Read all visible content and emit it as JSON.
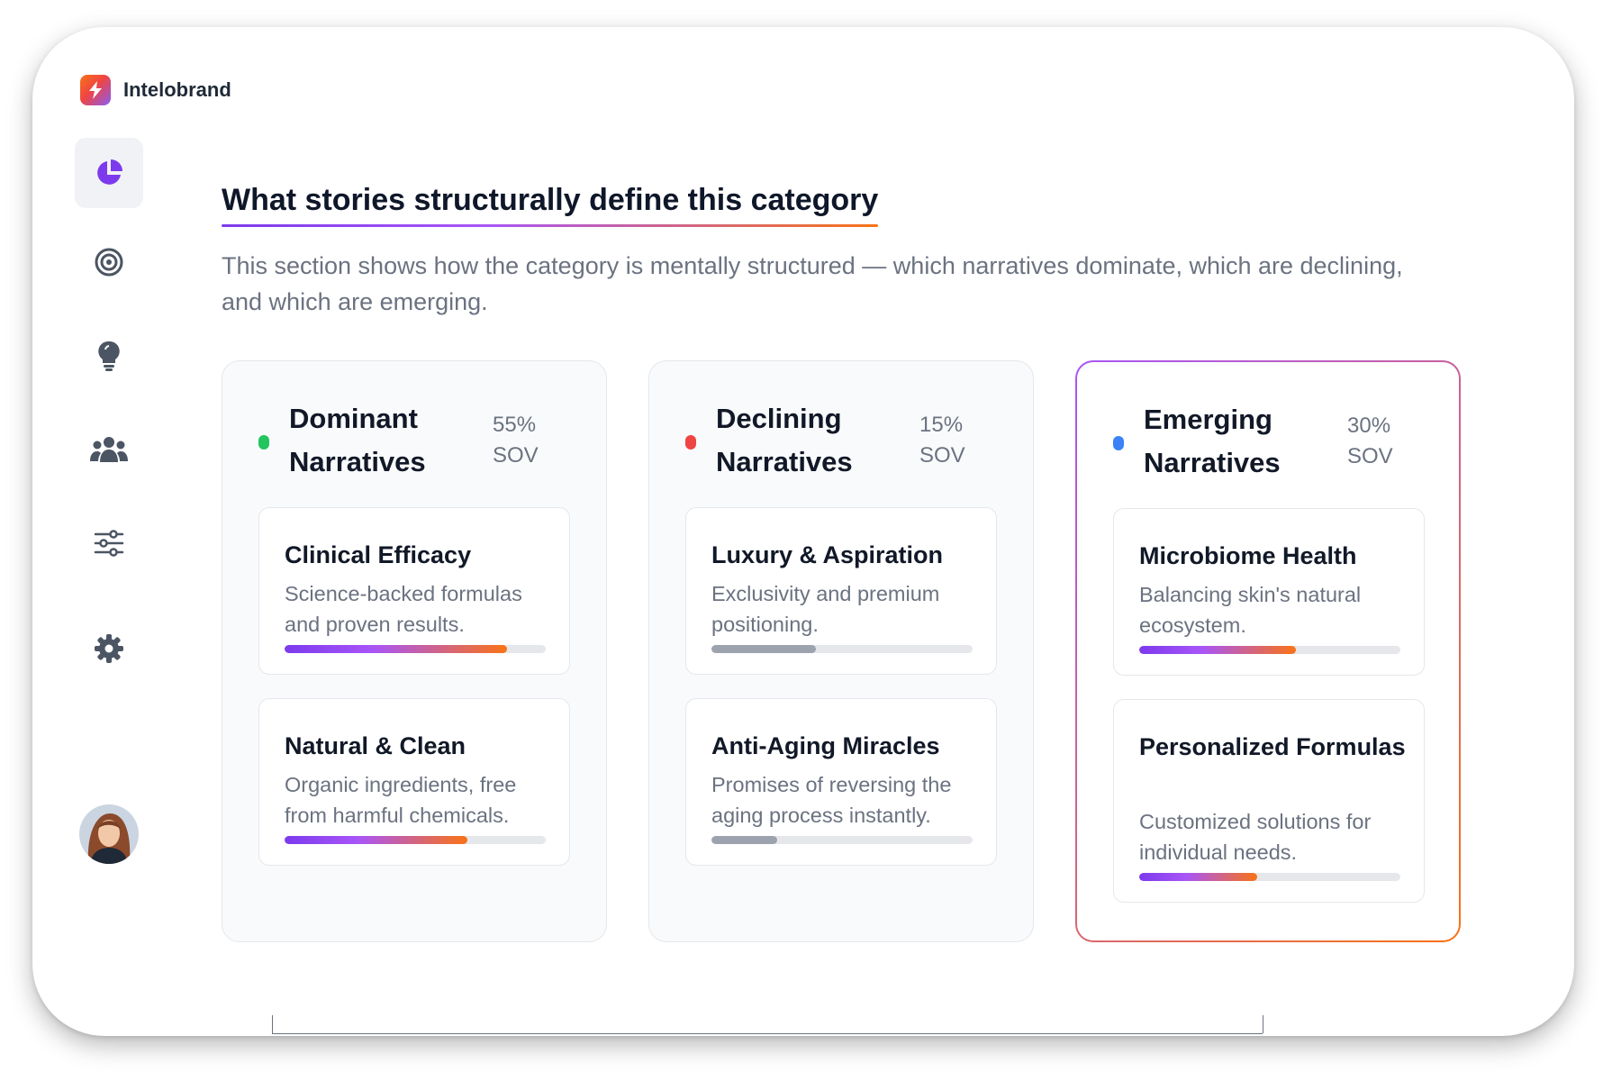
{
  "brand": {
    "name": "Intelobrand",
    "logo_icon": "lightning-icon"
  },
  "sidebar": {
    "items": [
      {
        "icon": "pie-chart-icon",
        "active": true
      },
      {
        "icon": "target-icon",
        "active": false
      },
      {
        "icon": "lightbulb-icon",
        "active": false
      },
      {
        "icon": "users-icon",
        "active": false
      },
      {
        "icon": "sliders-icon",
        "active": false
      },
      {
        "icon": "gear-icon",
        "active": false
      }
    ],
    "avatar": "user-avatar"
  },
  "header": {
    "title": "What stories structurally define this category",
    "description": "This section shows how the category is mentally structured — which narratives dominate, which are declining, and which are emerging."
  },
  "columns": [
    {
      "title": "Dominant Narratives",
      "sov_value": "55%",
      "sov_label": "SOV",
      "dot_color": "#22c55e",
      "cards": [
        {
          "title": "Clinical Efficacy",
          "description": "Science-backed formulas and proven results.",
          "strength": 0.85
        },
        {
          "title": "Natural & Clean",
          "description": "Organic ingredients, free from harmful chemicals.",
          "strength": 0.7
        }
      ]
    },
    {
      "title": "Declining Narratives",
      "sov_value": "15%",
      "sov_label": "SOV",
      "dot_color": "#ef4444",
      "cards": [
        {
          "title": "Luxury & Aspiration",
          "description": "Exclusivity and premium positioning.",
          "strength": 0.4
        },
        {
          "title": "Anti-Aging Miracles",
          "description": "Promises of reversing the aging process instantly.",
          "strength": 0.25
        }
      ]
    },
    {
      "title": "Emerging Narratives",
      "sov_value": "30%",
      "sov_label": "SOV",
      "dot_color": "#3b82f6",
      "cards": [
        {
          "title": "Microbiome Health",
          "description": "Balancing skin's natural ecosystem.",
          "strength": 0.6
        },
        {
          "title": "Personalized Formulas",
          "description": "Customized solutions for individual needs.",
          "strength": 0.45
        }
      ]
    }
  ]
}
